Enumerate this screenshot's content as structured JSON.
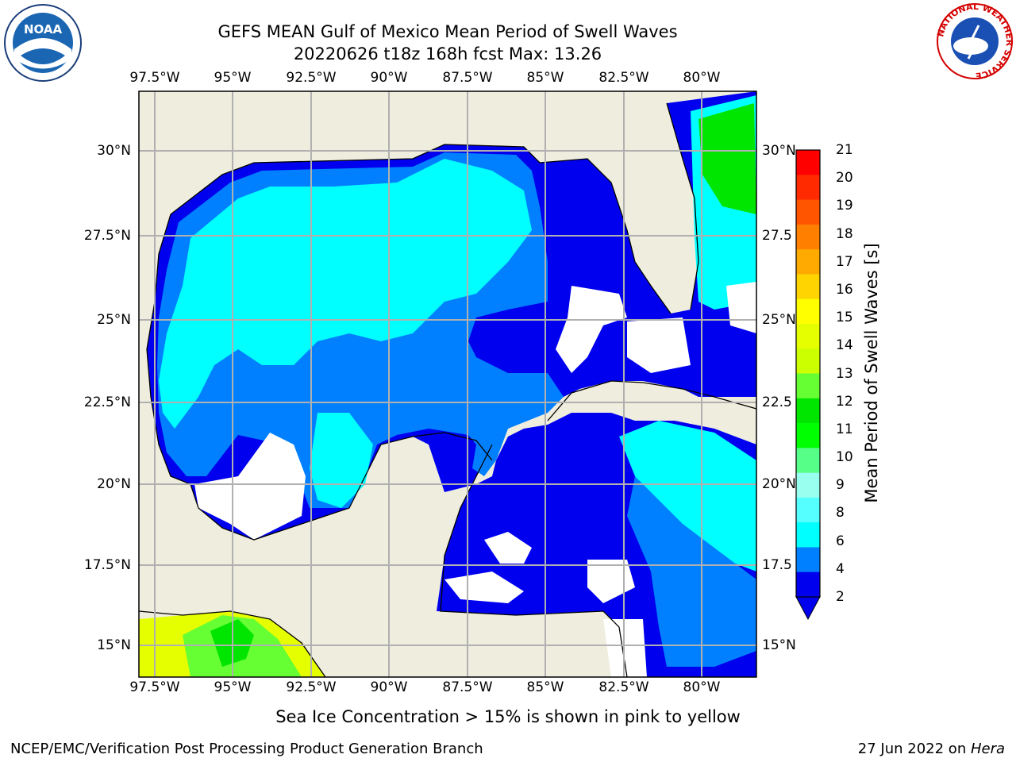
{
  "title_line1": "GEFS MEAN Gulf of Mexico Mean Period of Swell Waves",
  "title_line2": "20220626 t18z 168h fcst   Max: 13.26",
  "lon_labels": [
    "97.5°W",
    "95°W",
    "92.5°W",
    "90°W",
    "87.5°W",
    "85°W",
    "82.5°W",
    "80°W"
  ],
  "lat_labels_left": [
    "30°N",
    "27.5°N",
    "25°N",
    "22.5°N",
    "20°N",
    "17.5°N",
    "15°N"
  ],
  "lat_labels_right": [
    "30°N",
    "27.5",
    "25°N",
    "22.5",
    "20°N",
    "17.5",
    "15°N"
  ],
  "colorbar": {
    "label": "Mean Period of Swell Waves [s]",
    "ticks": [
      "21",
      "20",
      "19",
      "18",
      "17",
      "16",
      "15",
      "14",
      "13",
      "12",
      "11",
      "10",
      "9",
      "8",
      "6",
      "4",
      "2"
    ],
    "colors": [
      "#ff0000",
      "#ff2a00",
      "#ff5500",
      "#ff7f00",
      "#ffaa00",
      "#ffd400",
      "#ffff00",
      "#e6ff00",
      "#ccff00",
      "#66ff33",
      "#00e600",
      "#00ff00",
      "#55ff88",
      "#99ffee",
      "#55ffff",
      "#00ffff",
      "#0080ff",
      "#0000ee"
    ],
    "under_color": "#0000ee"
  },
  "subtitle": "Sea Ice Concentration > 15% is shown in pink to yellow",
  "footer_left": "NCEP/EMC/Verification Post Processing Product Generation Branch",
  "footer_date": "27 Jun 2022 on ",
  "footer_host": "Hera",
  "logos": {
    "left": {
      "name": "noaa-logo",
      "text": "NOAA",
      "color": "#1a66b3"
    },
    "right": {
      "name": "nws-logo",
      "ring_text": "NATIONAL WEATHER SERVICE",
      "color": "#d40000"
    }
  },
  "map_colors": {
    "land": "#efedde",
    "ocean_low": "#0000ee",
    "ocean_mid": "#0080ff",
    "ocean_high": "#00ffff",
    "grid": "#b0b0b0"
  }
}
